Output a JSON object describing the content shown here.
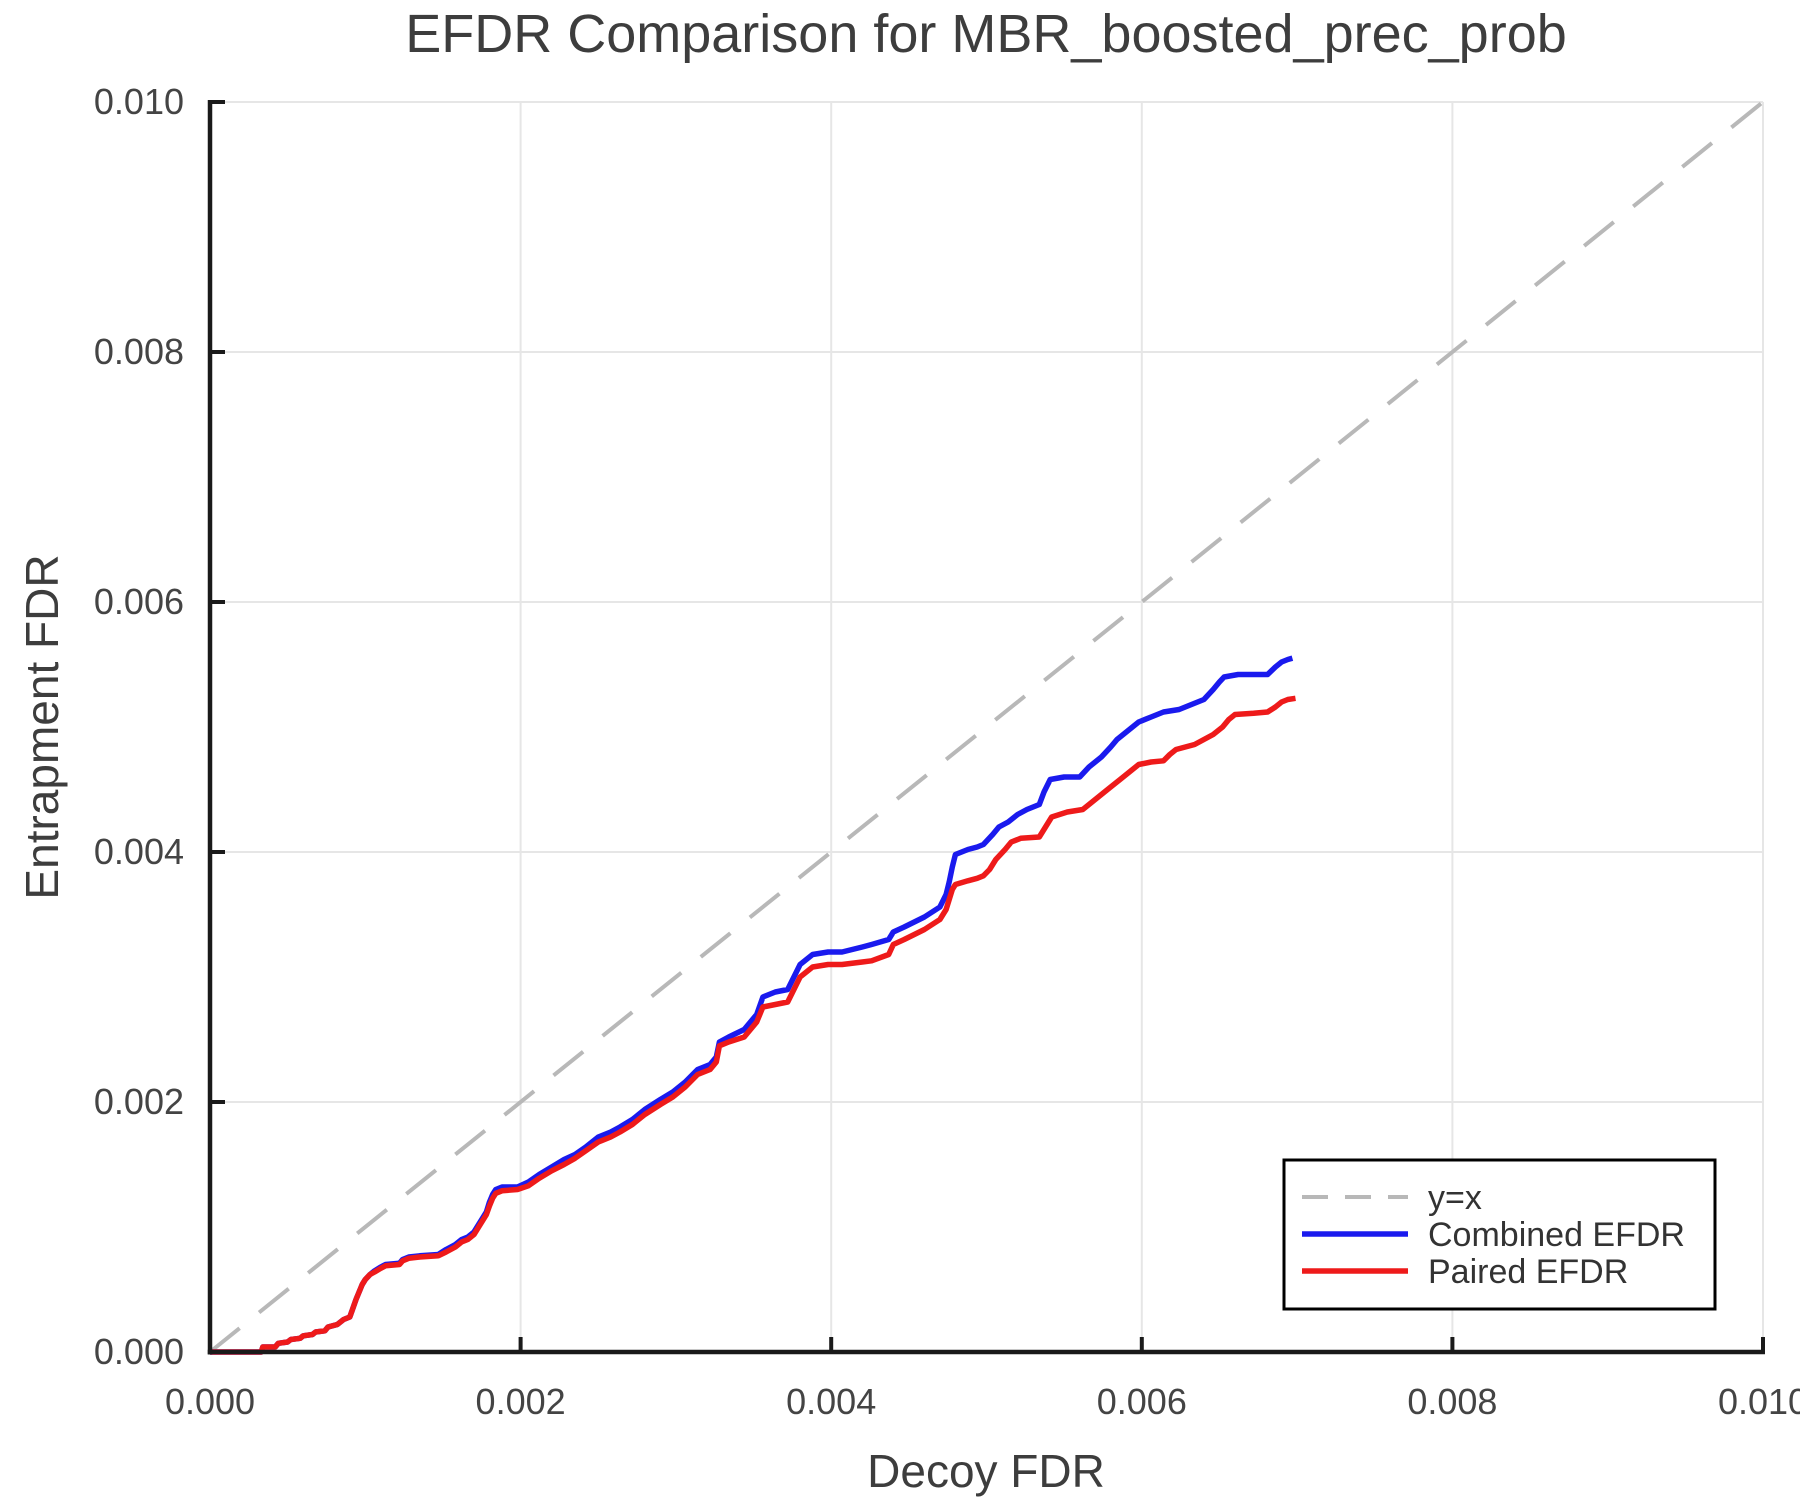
{
  "title": "EFDR Comparison for MBR_boosted_prec_prob",
  "chart_data": {
    "type": "line",
    "title": "EFDR Comparison for MBR_boosted_prec_prob",
    "xlabel": "Decoy FDR",
    "ylabel": "Entrapment FDR",
    "xlim": [
      0.0,
      0.01
    ],
    "ylim": [
      0.0,
      0.01
    ],
    "grid": true,
    "grid_color": "#e6e6e6",
    "spine_color": "#1a1a1a",
    "text_color": "#444444",
    "legend_position": "lower right",
    "x_ticks": [
      0.0,
      0.002,
      0.004,
      0.006,
      0.008,
      0.01
    ],
    "x_tick_labels": [
      "0.000",
      "0.002",
      "0.004",
      "0.006",
      "0.008",
      "0.010"
    ],
    "y_ticks": [
      0.0,
      0.002,
      0.004,
      0.006,
      0.008,
      0.01
    ],
    "y_tick_labels": [
      "0.000",
      "0.002",
      "0.004",
      "0.006",
      "0.008",
      "0.010"
    ],
    "series": [
      {
        "name": "y=x",
        "style": "dashed",
        "color": "#b8b8b8",
        "width": 4,
        "points": [
          [
            0.0,
            0.0
          ],
          [
            0.01,
            0.01
          ]
        ]
      },
      {
        "name": "Combined EFDR",
        "style": "solid",
        "color": "#1a1aee",
        "width": 5.5,
        "points": [
          [
            0,
            0
          ],
          [
            0.00033,
            0
          ],
          [
            0.00034,
            4e-05
          ],
          [
            0.00042,
            4e-05
          ],
          [
            0.00044,
            7e-05
          ],
          [
            0.0005,
            8e-05
          ],
          [
            0.00052,
            0.0001
          ],
          [
            0.00058,
            0.00011
          ],
          [
            0.0006,
            0.00013
          ],
          [
            0.00066,
            0.00014
          ],
          [
            0.00068,
            0.00016
          ],
          [
            0.00074,
            0.00017
          ],
          [
            0.00076,
            0.0002
          ],
          [
            0.00082,
            0.00022
          ],
          [
            0.00086,
            0.00026
          ],
          [
            0.0009,
            0.00028
          ],
          [
            0.00092,
            0.00035
          ],
          [
            0.00094,
            0.00042
          ],
          [
            0.00096,
            0.00048
          ],
          [
            0.00098,
            0.00054
          ],
          [
            0.001,
            0.00058
          ],
          [
            0.00103,
            0.00062
          ],
          [
            0.00106,
            0.00065
          ],
          [
            0.0011,
            0.00068
          ],
          [
            0.00113,
            0.0007
          ],
          [
            0.00122,
            0.00071
          ],
          [
            0.00124,
            0.00074
          ],
          [
            0.00128,
            0.00076
          ],
          [
            0.00135,
            0.00077
          ],
          [
            0.00147,
            0.00078
          ],
          [
            0.00152,
            0.00082
          ],
          [
            0.00158,
            0.00086
          ],
          [
            0.00162,
            0.0009
          ],
          [
            0.00166,
            0.00092
          ],
          [
            0.0017,
            0.00096
          ],
          [
            0.00174,
            0.00104
          ],
          [
            0.00178,
            0.00112
          ],
          [
            0.0018,
            0.0012
          ],
          [
            0.00182,
            0.00126
          ],
          [
            0.00184,
            0.0013
          ],
          [
            0.00188,
            0.00132
          ],
          [
            0.00198,
            0.00132
          ],
          [
            0.00205,
            0.00136
          ],
          [
            0.00212,
            0.00142
          ],
          [
            0.0022,
            0.00148
          ],
          [
            0.00228,
            0.00154
          ],
          [
            0.00235,
            0.00158
          ],
          [
            0.00242,
            0.00164
          ],
          [
            0.0025,
            0.00172
          ],
          [
            0.00258,
            0.00176
          ],
          [
            0.00264,
            0.0018
          ],
          [
            0.00272,
            0.00186
          ],
          [
            0.0028,
            0.00194
          ],
          [
            0.0029,
            0.00202
          ],
          [
            0.00298,
            0.00208
          ],
          [
            0.00306,
            0.00216
          ],
          [
            0.00314,
            0.00226
          ],
          [
            0.00322,
            0.0023
          ],
          [
            0.00326,
            0.00236
          ],
          [
            0.00328,
            0.00248
          ],
          [
            0.00334,
            0.00252
          ],
          [
            0.00344,
            0.00258
          ],
          [
            0.00352,
            0.0027
          ],
          [
            0.00356,
            0.00284
          ],
          [
            0.00364,
            0.00288
          ],
          [
            0.00372,
            0.0029
          ],
          [
            0.00376,
            0.003
          ],
          [
            0.0038,
            0.0031
          ],
          [
            0.00388,
            0.00318
          ],
          [
            0.00398,
            0.0032
          ],
          [
            0.00407,
            0.0032
          ],
          [
            0.0042,
            0.00324
          ],
          [
            0.00426,
            0.00326
          ],
          [
            0.00437,
            0.0033
          ],
          [
            0.0044,
            0.00336
          ],
          [
            0.00447,
            0.0034
          ],
          [
            0.0046,
            0.00348
          ],
          [
            0.0047,
            0.00356
          ],
          [
            0.00474,
            0.00366
          ],
          [
            0.00476,
            0.00376
          ],
          [
            0.00478,
            0.00388
          ],
          [
            0.0048,
            0.00398
          ],
          [
            0.00488,
            0.00402
          ],
          [
            0.00494,
            0.00404
          ],
          [
            0.00498,
            0.00406
          ],
          [
            0.00504,
            0.00414
          ],
          [
            0.00508,
            0.0042
          ],
          [
            0.00514,
            0.00424
          ],
          [
            0.0052,
            0.0043
          ],
          [
            0.00526,
            0.00434
          ],
          [
            0.00534,
            0.00438
          ],
          [
            0.00537,
            0.00448
          ],
          [
            0.00541,
            0.00458
          ],
          [
            0.0055,
            0.0046
          ],
          [
            0.0056,
            0.0046
          ],
          [
            0.00566,
            0.00468
          ],
          [
            0.00574,
            0.00476
          ],
          [
            0.0058,
            0.00484
          ],
          [
            0.00584,
            0.0049
          ],
          [
            0.0059,
            0.00496
          ],
          [
            0.00594,
            0.005
          ],
          [
            0.00598,
            0.00504
          ],
          [
            0.00606,
            0.00508
          ],
          [
            0.00614,
            0.00512
          ],
          [
            0.00624,
            0.00514
          ],
          [
            0.00632,
            0.00518
          ],
          [
            0.0064,
            0.00522
          ],
          [
            0.00646,
            0.0053
          ],
          [
            0.0065,
            0.00536
          ],
          [
            0.00653,
            0.0054
          ],
          [
            0.00662,
            0.00542
          ],
          [
            0.00681,
            0.00542
          ],
          [
            0.00686,
            0.00548
          ],
          [
            0.0069,
            0.00552
          ],
          [
            0.00694,
            0.00554
          ],
          [
            0.00697,
            0.00555
          ]
        ]
      },
      {
        "name": "Paired EFDR",
        "style": "solid",
        "color": "#ee1a1a",
        "width": 5.5,
        "points": [
          [
            0,
            0
          ],
          [
            0.00033,
            0
          ],
          [
            0.00034,
            4e-05
          ],
          [
            0.00042,
            4e-05
          ],
          [
            0.00044,
            7e-05
          ],
          [
            0.0005,
            8e-05
          ],
          [
            0.00052,
            0.0001
          ],
          [
            0.00058,
            0.00011
          ],
          [
            0.0006,
            0.00013
          ],
          [
            0.00066,
            0.00014
          ],
          [
            0.00068,
            0.00016
          ],
          [
            0.00074,
            0.00017
          ],
          [
            0.00076,
            0.0002
          ],
          [
            0.00082,
            0.00022
          ],
          [
            0.00086,
            0.00026
          ],
          [
            0.0009,
            0.00028
          ],
          [
            0.00092,
            0.00035
          ],
          [
            0.00094,
            0.00042
          ],
          [
            0.00096,
            0.00048
          ],
          [
            0.00098,
            0.00054
          ],
          [
            0.001,
            0.00058
          ],
          [
            0.00103,
            0.00062
          ],
          [
            0.00106,
            0.00064
          ],
          [
            0.0011,
            0.00067
          ],
          [
            0.00113,
            0.00069
          ],
          [
            0.00122,
            0.0007
          ],
          [
            0.00124,
            0.00073
          ],
          [
            0.00128,
            0.00075
          ],
          [
            0.00135,
            0.00076
          ],
          [
            0.00147,
            0.00077
          ],
          [
            0.00152,
            0.0008
          ],
          [
            0.00158,
            0.00084
          ],
          [
            0.00162,
            0.00088
          ],
          [
            0.00166,
            0.0009
          ],
          [
            0.0017,
            0.00094
          ],
          [
            0.00174,
            0.00102
          ],
          [
            0.00178,
            0.0011
          ],
          [
            0.0018,
            0.00117
          ],
          [
            0.00182,
            0.00123
          ],
          [
            0.00184,
            0.00127
          ],
          [
            0.00188,
            0.00129
          ],
          [
            0.00198,
            0.0013
          ],
          [
            0.00205,
            0.00133
          ],
          [
            0.00212,
            0.00139
          ],
          [
            0.0022,
            0.00145
          ],
          [
            0.00228,
            0.0015
          ],
          [
            0.00235,
            0.00155
          ],
          [
            0.00242,
            0.00161
          ],
          [
            0.0025,
            0.00168
          ],
          [
            0.00258,
            0.00172
          ],
          [
            0.00264,
            0.00176
          ],
          [
            0.00272,
            0.00182
          ],
          [
            0.0028,
            0.0019
          ],
          [
            0.0029,
            0.00198
          ],
          [
            0.00298,
            0.00204
          ],
          [
            0.00306,
            0.00212
          ],
          [
            0.00314,
            0.00222
          ],
          [
            0.00322,
            0.00226
          ],
          [
            0.00326,
            0.00232
          ],
          [
            0.00328,
            0.00245
          ],
          [
            0.00334,
            0.00248
          ],
          [
            0.00344,
            0.00252
          ],
          [
            0.00352,
            0.00264
          ],
          [
            0.00356,
            0.00276
          ],
          [
            0.00364,
            0.00278
          ],
          [
            0.00372,
            0.0028
          ],
          [
            0.00376,
            0.0029
          ],
          [
            0.0038,
            0.003
          ],
          [
            0.00388,
            0.00308
          ],
          [
            0.00398,
            0.0031
          ],
          [
            0.00407,
            0.0031
          ],
          [
            0.0042,
            0.00312
          ],
          [
            0.00426,
            0.00313
          ],
          [
            0.00437,
            0.00318
          ],
          [
            0.0044,
            0.00326
          ],
          [
            0.00447,
            0.0033
          ],
          [
            0.0046,
            0.00338
          ],
          [
            0.0047,
            0.00346
          ],
          [
            0.00474,
            0.00354
          ],
          [
            0.00476,
            0.00362
          ],
          [
            0.00478,
            0.0037
          ],
          [
            0.0048,
            0.00374
          ],
          [
            0.00488,
            0.00377
          ],
          [
            0.00494,
            0.00379
          ],
          [
            0.00498,
            0.00381
          ],
          [
            0.00502,
            0.00386
          ],
          [
            0.00506,
            0.00394
          ],
          [
            0.00512,
            0.00402
          ],
          [
            0.00516,
            0.00408
          ],
          [
            0.00522,
            0.00411
          ],
          [
            0.00534,
            0.00412
          ],
          [
            0.00538,
            0.0042
          ],
          [
            0.00542,
            0.00428
          ],
          [
            0.00552,
            0.00432
          ],
          [
            0.00562,
            0.00434
          ],
          [
            0.00568,
            0.0044
          ],
          [
            0.00574,
            0.00446
          ],
          [
            0.0058,
            0.00452
          ],
          [
            0.00586,
            0.00458
          ],
          [
            0.00592,
            0.00464
          ],
          [
            0.00598,
            0.0047
          ],
          [
            0.00606,
            0.00472
          ],
          [
            0.00614,
            0.00473
          ],
          [
            0.00618,
            0.00478
          ],
          [
            0.00622,
            0.00482
          ],
          [
            0.00634,
            0.00486
          ],
          [
            0.0064,
            0.0049
          ],
          [
            0.00646,
            0.00494
          ],
          [
            0.00652,
            0.005
          ],
          [
            0.00656,
            0.00506
          ],
          [
            0.0066,
            0.0051
          ],
          [
            0.00672,
            0.00511
          ],
          [
            0.00681,
            0.00512
          ],
          [
            0.00686,
            0.00516
          ],
          [
            0.0069,
            0.0052
          ],
          [
            0.00694,
            0.00522
          ],
          [
            0.00699,
            0.00523
          ]
        ]
      }
    ]
  }
}
